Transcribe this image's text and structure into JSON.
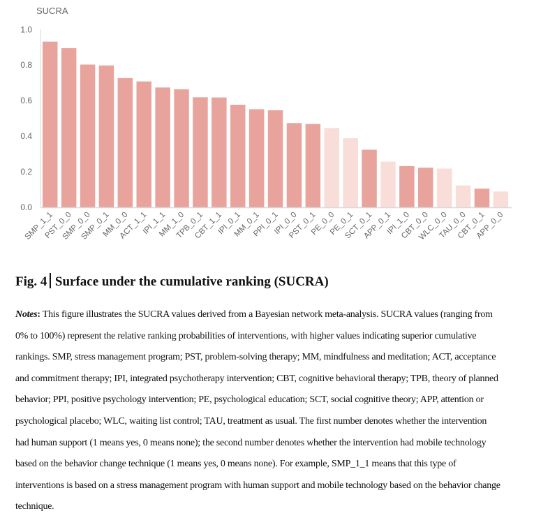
{
  "chart_data": {
    "type": "bar",
    "ylabel": "SUCRA",
    "ylim": [
      0,
      1.0
    ],
    "yticks": [
      "0.0",
      "0.2",
      "0.4",
      "0.6",
      "0.8",
      "1.0"
    ],
    "grid": false,
    "categories": [
      "SMP_1_1",
      "PST_0_0",
      "SMP_0_0",
      "SMP_0_1",
      "MM_0_0",
      "ACT_1_1",
      "IPI_1_1",
      "MM_1_0",
      "TPB_0_1",
      "CBT_1_1",
      "IPI_0_1",
      "MM_0_1",
      "PPI_0_1",
      "IPI_0_0",
      "PST_0_1",
      "PE_0_0",
      "PE_0_1",
      "SCT_0_1",
      "APP_0_1",
      "IPI_1_0",
      "CBT_0_0",
      "WLC_0_0",
      "TAU_0_0",
      "CBT_0_1",
      "APP_0_0"
    ],
    "values": [
      0.932,
      0.895,
      0.803,
      0.798,
      0.727,
      0.708,
      0.674,
      0.664,
      0.619,
      0.618,
      0.577,
      0.552,
      0.546,
      0.474,
      0.469,
      0.446,
      0.389,
      0.324,
      0.257,
      0.232,
      0.223,
      0.218,
      0.123,
      0.105,
      0.089
    ],
    "highlight": [
      true,
      true,
      true,
      true,
      true,
      true,
      true,
      true,
      true,
      true,
      true,
      true,
      true,
      true,
      true,
      false,
      false,
      true,
      false,
      true,
      true,
      false,
      false,
      true,
      false
    ],
    "colors": {
      "dark": "#e8a49c",
      "light": "#f8ddd9",
      "axis": "#d9d9d9",
      "tick_text": "#666666"
    }
  },
  "figure": {
    "label": "Fig. 4",
    "title": "Surface under the cumulative ranking (SUCRA)"
  },
  "notes": {
    "label": "Notes",
    "colon": ":",
    "lines": [
      " This figure illustrates the SUCRA values derived from a Bayesian network meta-analysis. SUCRA values (ranging from",
      "0% to 100%) represent the relative ranking probabilities of interventions, with higher values indicating superior cumulative",
      "rankings. SMP, stress management program; PST, problem-solving therapy; MM, mindfulness and meditation; ACT, acceptance",
      "and commitment therapy; IPI, integrated psychotherapy intervention; CBT, cognitive behavioral therapy; TPB, theory of planned",
      "behavior; PPI, positive psychology intervention; PE, psychological education; SCT, social cognitive theory; APP, attention or",
      "psychological placebo; WLC, waiting list control; TAU, treatment as usual. The first number denotes whether the intervention",
      "had human support (1 means yes, 0 means none); the second number denotes whether the intervention had mobile technology",
      "based on the behavior change technique (1 means yes, 0 means none). For example, SMP_1_1 means that this type of",
      "interventions is based on a stress management program with human support and mobile technology based on the behavior change",
      "technique."
    ]
  }
}
